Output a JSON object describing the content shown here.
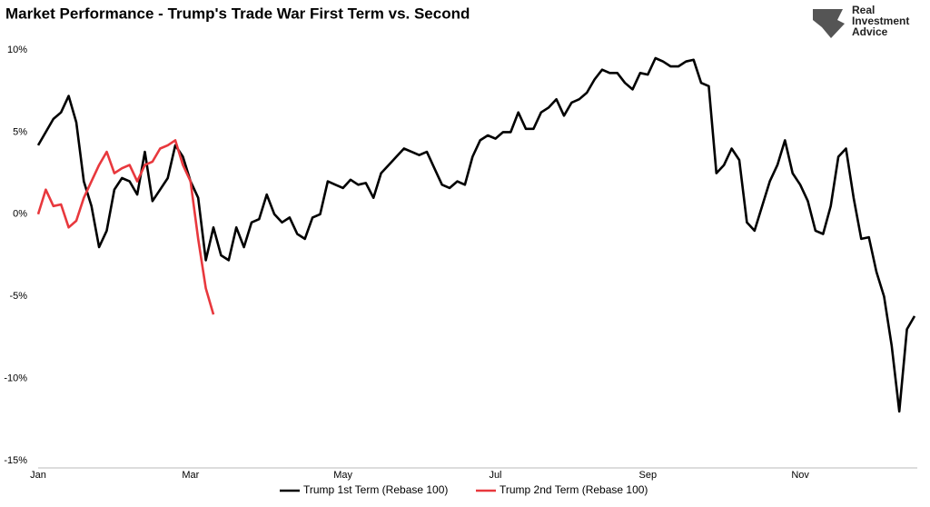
{
  "chart_data": {
    "type": "line",
    "title": "Market Performance - Trump's Trade War First Term vs. Second",
    "categories": [
      "Jan",
      null,
      null,
      null,
      null,
      null,
      null,
      null,
      null,
      null,
      null,
      null,
      null,
      null,
      null,
      null,
      null,
      null,
      null,
      null,
      "Mar",
      null,
      null,
      null,
      null,
      null,
      null,
      null,
      null,
      null,
      null,
      null,
      null,
      null,
      null,
      null,
      null,
      null,
      null,
      null,
      "May",
      null,
      null,
      null,
      null,
      null,
      null,
      null,
      null,
      null,
      null,
      null,
      null,
      null,
      null,
      null,
      null,
      null,
      null,
      null,
      "Jul",
      null,
      null,
      null,
      null,
      null,
      null,
      null,
      null,
      null,
      null,
      null,
      null,
      null,
      null,
      null,
      null,
      null,
      null,
      null,
      "Sep",
      null,
      null,
      null,
      null,
      null,
      null,
      null,
      null,
      null,
      null,
      null,
      null,
      null,
      null,
      null,
      null,
      null,
      null,
      null,
      "Nov",
      null,
      null,
      null,
      null,
      null,
      null,
      null,
      null,
      null,
      null,
      null,
      null,
      null,
      null,
      null
    ],
    "series": [
      {
        "name": "Trump 1st Term (Rebase 100)",
        "color": "#000000",
        "values": [
          4.2,
          5.0,
          5.8,
          6.2,
          7.2,
          5.6,
          2.0,
          0.5,
          -2.0,
          -1.0,
          1.5,
          2.2,
          2.0,
          1.2,
          3.8,
          0.8,
          1.5,
          2.2,
          4.2,
          3.5,
          2.0,
          1.0,
          -2.8,
          -0.8,
          -2.5,
          -2.8,
          -0.8,
          -2.0,
          -0.5,
          -0.3,
          1.2,
          0.0,
          -0.5,
          -0.2,
          -1.2,
          -1.5,
          -0.2,
          0.0,
          2.0,
          1.8,
          1.6,
          2.1,
          1.8,
          1.9,
          1.0,
          2.5,
          3.0,
          3.5,
          4.0,
          3.8,
          3.6,
          3.8,
          2.8,
          1.8,
          1.6,
          2.0,
          1.8,
          3.5,
          4.5,
          4.8,
          4.6,
          5.0,
          5.0,
          6.2,
          5.2,
          5.2,
          6.2,
          6.5,
          7.0,
          6.0,
          6.8,
          7.0,
          7.4,
          8.2,
          8.8,
          8.6,
          8.6,
          8.0,
          7.6,
          8.6,
          8.5,
          9.5,
          9.3,
          9.0,
          9.0,
          9.3,
          9.4,
          8.0,
          7.8,
          2.5,
          3.0,
          4.0,
          3.3,
          -0.5,
          -1.0,
          0.5,
          2.0,
          3.0,
          4.5,
          2.5,
          1.8,
          0.8,
          -1.0,
          -1.2,
          0.5,
          3.5,
          4.0,
          1.0,
          -1.5,
          -1.4,
          -3.5,
          -5.0,
          -8.0,
          -12.0,
          -7.0,
          -6.2
        ]
      },
      {
        "name": "Trump 2nd Term (Rebase 100)",
        "color": "#e8383d",
        "values": [
          0.0,
          1.5,
          0.5,
          0.6,
          -0.8,
          -0.4,
          1.0,
          2.0,
          3.0,
          3.8,
          2.5,
          2.8,
          3.0,
          2.0,
          3.0,
          3.2,
          4.0,
          4.2,
          4.5,
          3.0,
          2.0,
          -1.5,
          -4.5,
          -6.1,
          null,
          null,
          null,
          null,
          null,
          null,
          null,
          null,
          null,
          null,
          null,
          null,
          null,
          null,
          null,
          null,
          null,
          null,
          null,
          null,
          null,
          null,
          null,
          null,
          null,
          null,
          null,
          null,
          null,
          null,
          null,
          null,
          null,
          null,
          null,
          null,
          null,
          null,
          null,
          null,
          null,
          null,
          null,
          null,
          null,
          null,
          null,
          null,
          null,
          null,
          null,
          null,
          null,
          null,
          null,
          null,
          null,
          null,
          null,
          null,
          null,
          null,
          null,
          null,
          null,
          null,
          null,
          null,
          null,
          null,
          null,
          null,
          null,
          null,
          null,
          null,
          null,
          null,
          null,
          null,
          null,
          null,
          null,
          null,
          null,
          null,
          null,
          null,
          null,
          null,
          null,
          null
        ]
      }
    ],
    "ylim": [
      -15,
      10
    ],
    "yticks": [
      {
        "value": 10,
        "label": "10%"
      },
      {
        "value": 5,
        "label": "5%"
      },
      {
        "value": 0,
        "label": "0%"
      },
      {
        "value": -5,
        "label": "-5%"
      },
      {
        "value": -10,
        "label": "-10%"
      },
      {
        "value": -15,
        "label": "-15%"
      }
    ],
    "grid": false,
    "legend": "bottom"
  },
  "logo_text": [
    "Real",
    "Investment",
    "Advice"
  ]
}
